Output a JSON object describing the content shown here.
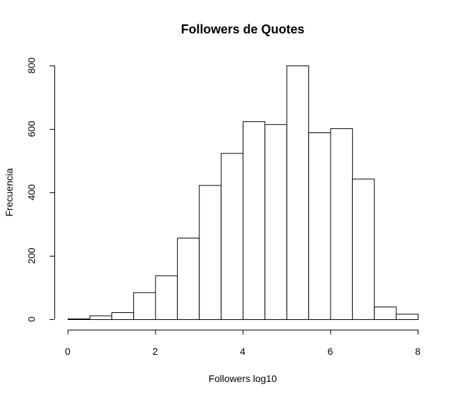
{
  "chart_data": {
    "type": "bar",
    "title": "Followers de Quotes",
    "xlabel": "Followers log10",
    "ylabel": "Frecuencia",
    "bin_edges": [
      0,
      0.5,
      1,
      1.5,
      2,
      2.5,
      3,
      3.5,
      4,
      4.5,
      5,
      5.5,
      6,
      6.5,
      7,
      7.5,
      8
    ],
    "values": [
      2,
      12,
      22,
      85,
      138,
      257,
      423,
      524,
      624,
      615,
      800,
      589,
      602,
      443,
      40,
      17
    ],
    "xlim": [
      0,
      8
    ],
    "ylim": [
      0,
      800
    ],
    "x_ticks": [
      "0",
      "2",
      "4",
      "6",
      "8"
    ],
    "y_ticks": [
      "0",
      "200",
      "400",
      "600",
      "800"
    ],
    "grid": false,
    "legend": "none"
  }
}
